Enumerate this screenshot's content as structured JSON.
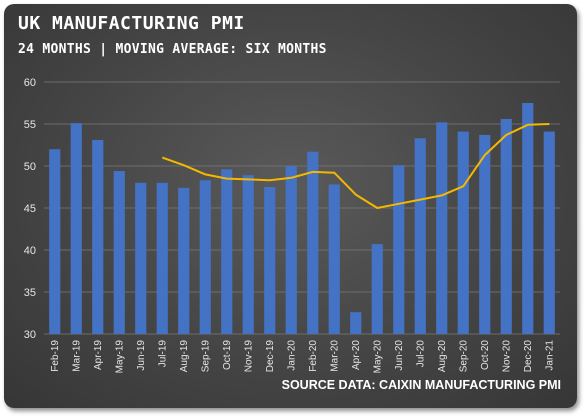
{
  "chart_data": {
    "type": "bar",
    "title": "UK MANUFACTURING PMI",
    "subtitle": "24 MONTHS | MOVING AVERAGE: SIX MONTHS",
    "source": "SOURCE DATA: CAIXIN MANUFACTURING PMI",
    "ylim": [
      30,
      60
    ],
    "yticks": [
      30,
      35,
      40,
      45,
      50,
      55,
      60
    ],
    "grid": true,
    "categories": [
      "Feb-19",
      "Mar-19",
      "Apr-19",
      "May-19",
      "Jun-19",
      "Jul-19",
      "Aug-19",
      "Sep-19",
      "Oct-19",
      "Nov-19",
      "Dec-19",
      "Jan-20",
      "Feb-20",
      "Mar-20",
      "Apr-20",
      "May-20",
      "Jun-20",
      "Jul-20",
      "Aug-20",
      "Sep-20",
      "Oct-20",
      "Nov-20",
      "Dec-20",
      "Jan-21"
    ],
    "series": [
      {
        "type": "bar",
        "color": "#4472c4",
        "values": [
          52.0,
          55.1,
          53.1,
          49.4,
          48.0,
          48.0,
          47.4,
          48.3,
          49.6,
          48.9,
          47.5,
          50.0,
          51.7,
          47.8,
          32.6,
          40.7,
          50.1,
          53.3,
          55.2,
          54.1,
          53.7,
          55.6,
          57.5,
          54.1
        ]
      },
      {
        "type": "line",
        "color": "#f5b800",
        "values": [
          null,
          null,
          null,
          null,
          null,
          51.0,
          50.1,
          49.0,
          48.5,
          48.4,
          48.3,
          48.6,
          49.3,
          49.2,
          46.6,
          45.0,
          45.5,
          46.0,
          46.5,
          47.6,
          51.3,
          53.7,
          54.9,
          55.0
        ]
      }
    ]
  }
}
